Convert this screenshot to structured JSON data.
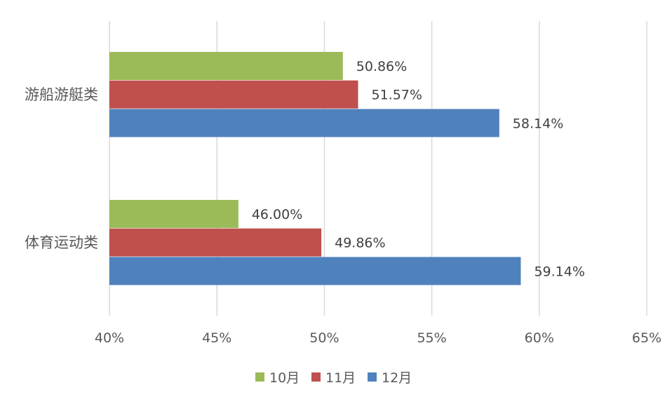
{
  "chart_data": {
    "type": "bar",
    "orientation": "horizontal",
    "categories": [
      "游船游艇类",
      "体育运动类"
    ],
    "series": [
      {
        "name": "10月",
        "color": "#9BBB59",
        "values": [
          50.86,
          46.0
        ],
        "labels": [
          "50.86%",
          "46.00%"
        ]
      },
      {
        "name": "11月",
        "color": "#C0504D",
        "values": [
          51.57,
          49.86
        ],
        "labels": [
          "51.57%",
          "49.86%"
        ]
      },
      {
        "name": "12月",
        "color": "#4F81BD",
        "values": [
          58.14,
          59.14
        ],
        "labels": [
          "58.14%",
          "59.14%"
        ]
      }
    ],
    "xlim": [
      40,
      65
    ],
    "xticks": [
      40,
      45,
      50,
      55,
      60,
      65
    ],
    "xtick_labels": [
      "40%",
      "45%",
      "50%",
      "55%",
      "60%",
      "65%"
    ],
    "grid": true,
    "legend_position": "bottom",
    "gridline_color": "#D9D9D9"
  }
}
